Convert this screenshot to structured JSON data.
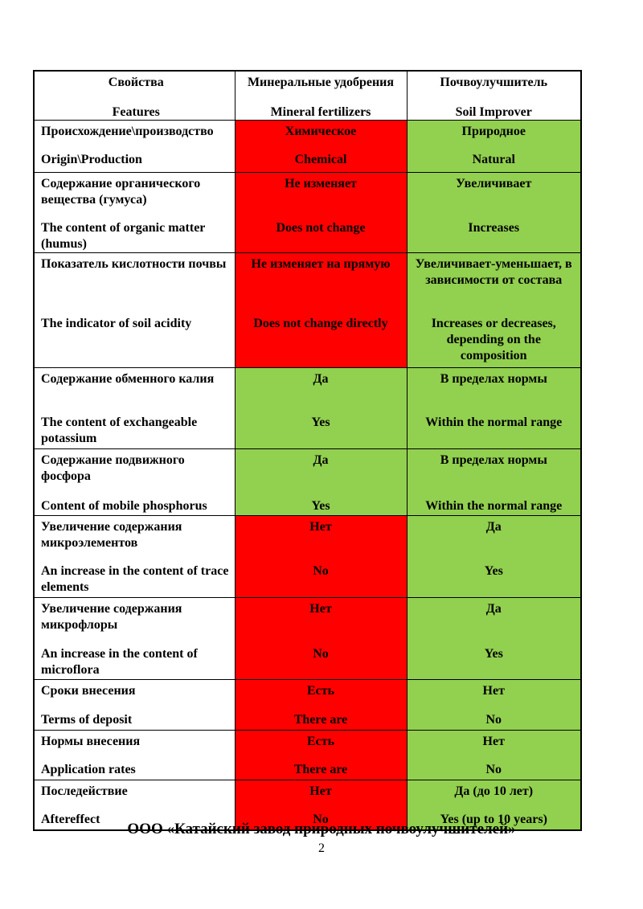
{
  "colors": {
    "negative_bg": "#FF0000",
    "positive_bg": "#92D050",
    "text": "#000000",
    "border": "#000000"
  },
  "footer": {
    "company": "ООО «Катайский завод природных почвоулучшителей»",
    "page_number": "2"
  },
  "table": {
    "header": {
      "feature": {
        "ru": "Свойства",
        "en": "Features"
      },
      "mineral": {
        "ru": "Минеральные удобрения",
        "en": "Mineral fertilizers"
      },
      "improver": {
        "ru": "Почвоулучшитель",
        "en": "Soil Improver"
      }
    },
    "rows": [
      {
        "feature": {
          "ru": "Происхождение\\производство",
          "en": "Origin\\Production"
        },
        "mineral": {
          "ru": "Химическое",
          "en": "Chemical",
          "bg": "#FF0000"
        },
        "improver": {
          "ru": "Природное",
          "en": "Natural",
          "bg": "#92D050"
        }
      },
      {
        "feature": {
          "ru": "Содержание органического вещества (гумуса)",
          "en": "The content of organic matter (humus)"
        },
        "mineral": {
          "ru": "Не изменяет",
          "en": "Does not change",
          "bg": "#FF0000"
        },
        "improver": {
          "ru": "Увеличивает",
          "en": "Increases",
          "bg": "#92D050"
        }
      },
      {
        "feature": {
          "ru": "Показатель кислотности почвы",
          "en": "The indicator of soil acidity"
        },
        "mineral": {
          "ru": "Не изменяет на прямую",
          "en": "Does not change directly",
          "bg": "#FF0000"
        },
        "improver": {
          "ru": "Увеличивает-уменьшает, в зависимости от состава",
          "en": "Increases or decreases, depending on the composition",
          "bg": "#92D050"
        }
      },
      {
        "feature": {
          "ru": "Содержание обменного калия",
          "en": "The content of exchangeable potassium"
        },
        "mineral": {
          "ru": "Да",
          "en": "Yes",
          "bg": "#92D050"
        },
        "improver": {
          "ru": "В пределах нормы",
          "en": "Within the normal range",
          "bg": "#92D050"
        }
      },
      {
        "feature": {
          "ru": "Содержание подвижного фосфора",
          "en": "Content of mobile phosphorus"
        },
        "mineral": {
          "ru": "Да",
          "en": "Yes",
          "bg": "#92D050"
        },
        "improver": {
          "ru": "В пределах нормы",
          "en": "Within the normal range",
          "bg": "#92D050"
        }
      },
      {
        "feature": {
          "ru": "Увеличение содержания микроэлементов",
          "en": "An increase in the content of trace elements"
        },
        "mineral": {
          "ru": "Нет",
          "en": "No",
          "bg": "#FF0000"
        },
        "improver": {
          "ru": "Да",
          "en": "Yes",
          "bg": "#92D050"
        }
      },
      {
        "feature": {
          "ru": "Увеличение содержания микрофлоры",
          "en": "An increase in the content of microflora"
        },
        "mineral": {
          "ru": "Нет",
          "en": "No",
          "bg": "#FF0000"
        },
        "improver": {
          "ru": "Да",
          "en": "Yes",
          "bg": "#92D050"
        }
      },
      {
        "feature": {
          "ru": "Сроки внесения",
          "en": "Terms of deposit"
        },
        "mineral": {
          "ru": "Есть",
          "en": "There are",
          "bg": "#FF0000"
        },
        "improver": {
          "ru": "Нет",
          "en": "No",
          "bg": "#92D050"
        }
      },
      {
        "feature": {
          "ru": "Нормы внесения",
          "en": "Application rates"
        },
        "mineral": {
          "ru": "Есть",
          "en": "There are",
          "bg": "#FF0000"
        },
        "improver": {
          "ru": "Нет",
          "en": "No",
          "bg": "#92D050"
        }
      },
      {
        "feature": {
          "ru": "Последействие",
          "en": "Aftereffect"
        },
        "mineral": {
          "ru": "Нет",
          "en": "No",
          "bg": "#FF0000"
        },
        "improver": {
          "ru": "Да (до 10 лет)",
          "en": "Yes (up to 10 years)",
          "bg": "#92D050"
        }
      }
    ]
  }
}
